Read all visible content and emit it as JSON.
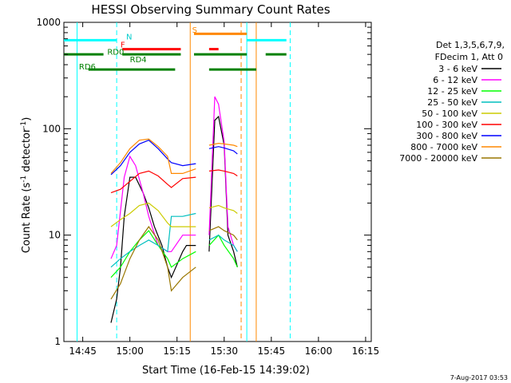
{
  "chart_data": {
    "type": "line",
    "title": "HESSI Observing Summary Count Rates",
    "xlabel": "Start Time (16-Feb-15 14:39:02)",
    "ylabel_main": "Count Rate (s",
    "ylabel_sup1": "-1",
    "ylabel_mid": " detector",
    "ylabel_sup2": "-1",
    "ylabel_end": ")",
    "y_scale": "log",
    "ylim": [
      1,
      1000
    ],
    "xlim_minutes": [
      14.65,
      16.28
    ],
    "x_ticks": [
      {
        "t": 14.75,
        "label": "14:45"
      },
      {
        "t": 15.0,
        "label": "15:00"
      },
      {
        "t": 15.25,
        "label": "15:15"
      },
      {
        "t": 15.5,
        "label": "15:30"
      },
      {
        "t": 15.75,
        "label": "15:45"
      },
      {
        "t": 16.0,
        "label": "16:00"
      },
      {
        "t": 16.25,
        "label": "16:15"
      }
    ],
    "y_ticks": [
      {
        "v": 1,
        "label": "1"
      },
      {
        "v": 10,
        "label": "10"
      },
      {
        "v": 100,
        "label": "100"
      },
      {
        "v": 1000,
        "label": "1000"
      }
    ],
    "legend_header": [
      "Det 1,3,5,6,7,9,",
      "FDecim 1, Att 0"
    ],
    "legend_placement": "right",
    "series": [
      {
        "name": "3 - 6 keV",
        "color": "#000000",
        "points": [
          [
            14.9,
            1.5
          ],
          [
            14.93,
            2.5
          ],
          [
            14.95,
            5
          ],
          [
            14.97,
            15
          ],
          [
            15.0,
            35
          ],
          [
            15.03,
            35
          ],
          [
            15.07,
            25
          ],
          [
            15.1,
            18
          ],
          [
            15.13,
            12
          ],
          [
            15.17,
            8
          ],
          [
            15.2,
            5
          ],
          [
            15.22,
            4
          ],
          [
            15.28,
            7
          ],
          [
            15.3,
            8
          ],
          [
            15.35,
            8
          ],
          [
            15.37,
            null
          ],
          [
            15.42,
            7
          ],
          [
            15.45,
            120
          ],
          [
            15.47,
            130
          ],
          [
            15.5,
            70
          ],
          [
            15.52,
            10
          ],
          [
            15.55,
            7
          ],
          [
            15.57,
            5
          ]
        ]
      },
      {
        "name": "6 - 12 keV",
        "color": "#ff00ff",
        "points": [
          [
            14.9,
            6
          ],
          [
            14.93,
            8
          ],
          [
            14.97,
            35
          ],
          [
            15.0,
            55
          ],
          [
            15.03,
            45
          ],
          [
            15.07,
            25
          ],
          [
            15.1,
            15
          ],
          [
            15.15,
            8
          ],
          [
            15.2,
            7
          ],
          [
            15.22,
            7
          ],
          [
            15.28,
            10
          ],
          [
            15.35,
            10
          ],
          [
            15.37,
            null
          ],
          [
            15.42,
            10
          ],
          [
            15.45,
            200
          ],
          [
            15.47,
            170
          ],
          [
            15.5,
            75
          ],
          [
            15.52,
            12
          ],
          [
            15.55,
            8
          ],
          [
            15.57,
            7
          ]
        ]
      },
      {
        "name": "12 - 25 keV",
        "color": "#00ff00",
        "points": [
          [
            14.9,
            4
          ],
          [
            14.95,
            5
          ],
          [
            15.0,
            7
          ],
          [
            15.05,
            9
          ],
          [
            15.1,
            11
          ],
          [
            15.15,
            8
          ],
          [
            15.2,
            6
          ],
          [
            15.22,
            5
          ],
          [
            15.28,
            6
          ],
          [
            15.35,
            7
          ],
          [
            15.37,
            null
          ],
          [
            15.42,
            8
          ],
          [
            15.47,
            10
          ],
          [
            15.5,
            8
          ],
          [
            15.55,
            6
          ],
          [
            15.57,
            5
          ]
        ]
      },
      {
        "name": "25 - 50 keV",
        "color": "#00bfbf",
        "points": [
          [
            14.9,
            5
          ],
          [
            14.95,
            6
          ],
          [
            15.0,
            7
          ],
          [
            15.05,
            8
          ],
          [
            15.1,
            9
          ],
          [
            15.15,
            8
          ],
          [
            15.2,
            7
          ],
          [
            15.22,
            15
          ],
          [
            15.28,
            15
          ],
          [
            15.35,
            16
          ],
          [
            15.37,
            null
          ],
          [
            15.42,
            9
          ],
          [
            15.47,
            10
          ],
          [
            15.5,
            9
          ],
          [
            15.55,
            8
          ],
          [
            15.57,
            7
          ]
        ]
      },
      {
        "name": "50 - 100 keV",
        "color": "#cccc00",
        "points": [
          [
            14.9,
            12
          ],
          [
            14.95,
            14
          ],
          [
            15.0,
            16
          ],
          [
            15.05,
            19
          ],
          [
            15.1,
            20
          ],
          [
            15.15,
            17
          ],
          [
            15.2,
            13
          ],
          [
            15.22,
            12
          ],
          [
            15.28,
            12
          ],
          [
            15.35,
            12
          ],
          [
            15.37,
            null
          ],
          [
            15.42,
            18
          ],
          [
            15.47,
            19
          ],
          [
            15.5,
            18
          ],
          [
            15.55,
            17
          ],
          [
            15.57,
            16
          ]
        ]
      },
      {
        "name": "100 - 300 keV",
        "color": "#ff0000",
        "points": [
          [
            14.9,
            25
          ],
          [
            14.95,
            27
          ],
          [
            15.0,
            32
          ],
          [
            15.05,
            38
          ],
          [
            15.1,
            40
          ],
          [
            15.15,
            36
          ],
          [
            15.2,
            30
          ],
          [
            15.22,
            28
          ],
          [
            15.28,
            34
          ],
          [
            15.35,
            35
          ],
          [
            15.37,
            null
          ],
          [
            15.42,
            40
          ],
          [
            15.47,
            41
          ],
          [
            15.5,
            40
          ],
          [
            15.55,
            38
          ],
          [
            15.57,
            36
          ]
        ]
      },
      {
        "name": "300 - 800 keV",
        "color": "#0000ff",
        "points": [
          [
            14.9,
            37
          ],
          [
            14.95,
            45
          ],
          [
            15.0,
            60
          ],
          [
            15.05,
            72
          ],
          [
            15.1,
            78
          ],
          [
            15.15,
            65
          ],
          [
            15.2,
            52
          ],
          [
            15.22,
            48
          ],
          [
            15.28,
            45
          ],
          [
            15.35,
            47
          ],
          [
            15.37,
            null
          ],
          [
            15.42,
            65
          ],
          [
            15.47,
            68
          ],
          [
            15.5,
            66
          ],
          [
            15.55,
            62
          ],
          [
            15.57,
            58
          ]
        ]
      },
      {
        "name": "800 - 7000 keV",
        "color": "#ff8800",
        "points": [
          [
            14.9,
            38
          ],
          [
            14.95,
            48
          ],
          [
            15.0,
            65
          ],
          [
            15.05,
            78
          ],
          [
            15.1,
            80
          ],
          [
            15.15,
            68
          ],
          [
            15.2,
            55
          ],
          [
            15.22,
            38
          ],
          [
            15.28,
            38
          ],
          [
            15.35,
            42
          ],
          [
            15.37,
            null
          ],
          [
            15.42,
            70
          ],
          [
            15.47,
            73
          ],
          [
            15.5,
            72
          ],
          [
            15.55,
            70
          ],
          [
            15.57,
            68
          ]
        ]
      },
      {
        "name": "7000 - 20000 keV",
        "color": "#997700",
        "points": [
          [
            14.9,
            2.5
          ],
          [
            14.95,
            3.5
          ],
          [
            15.0,
            6
          ],
          [
            15.05,
            9
          ],
          [
            15.1,
            12
          ],
          [
            15.15,
            9
          ],
          [
            15.2,
            5
          ],
          [
            15.22,
            3
          ],
          [
            15.28,
            4
          ],
          [
            15.35,
            5
          ],
          [
            15.37,
            null
          ],
          [
            15.42,
            11
          ],
          [
            15.47,
            12
          ],
          [
            15.5,
            11
          ],
          [
            15.55,
            10
          ],
          [
            15.57,
            9
          ]
        ]
      }
    ],
    "annotations": {
      "labels": [
        {
          "text": "N",
          "color": "#00cccc",
          "t": 14.98,
          "v": 690
        },
        {
          "text": "F",
          "color": "#ff0000",
          "t": 14.95,
          "v": 580
        },
        {
          "text": "RD0",
          "color": "#008000",
          "t": 14.88,
          "v": 495
        },
        {
          "text": "RD4",
          "color": "#008000",
          "t": 15.0,
          "v": 420
        },
        {
          "text": "RD6",
          "color": "#008000",
          "t": 14.73,
          "v": 360
        },
        {
          "text": "S",
          "color": "#ff8800",
          "t": 15.33,
          "v": 800
        }
      ],
      "state_bars": [
        {
          "color": "#00ffff",
          "t0": 14.65,
          "t1": 14.93,
          "v": 680
        },
        {
          "color": "#00ffff",
          "t0": 15.62,
          "t1": 15.83,
          "v": 680
        },
        {
          "color": "#ff0000",
          "t0": 14.96,
          "t1": 15.27,
          "v": 560
        },
        {
          "color": "#ff0000",
          "t0": 15.42,
          "t1": 15.47,
          "v": 560
        },
        {
          "color": "#ff8800",
          "t0": 15.34,
          "t1": 15.62,
          "v": 780
        },
        {
          "color": "#008000",
          "t0": 14.65,
          "t1": 14.86,
          "v": 500
        },
        {
          "color": "#008000",
          "t0": 14.96,
          "t1": 15.27,
          "v": 500
        },
        {
          "color": "#008000",
          "t0": 15.34,
          "t1": 15.62,
          "v": 500
        },
        {
          "color": "#008000",
          "t0": 15.72,
          "t1": 15.83,
          "v": 500
        },
        {
          "color": "#008000",
          "t0": 14.78,
          "t1": 15.24,
          "v": 360
        },
        {
          "color": "#008000",
          "t0": 15.42,
          "t1": 15.67,
          "v": 360
        }
      ],
      "vlines": [
        {
          "t": 14.72,
          "color": "#00ffff",
          "dash": false
        },
        {
          "t": 14.93,
          "color": "#00ffff",
          "dash": true
        },
        {
          "t": 15.32,
          "color": "#ff8800",
          "dash": false
        },
        {
          "t": 15.59,
          "color": "#ff8800",
          "dash": true
        },
        {
          "t": 15.62,
          "color": "#00ffff",
          "dash": false
        },
        {
          "t": 15.85,
          "color": "#00ffff",
          "dash": true
        },
        {
          "t": 15.67,
          "color": "#ff8800",
          "dash": false
        }
      ]
    }
  },
  "footer_timestamp": "7-Aug-2017 03:53"
}
